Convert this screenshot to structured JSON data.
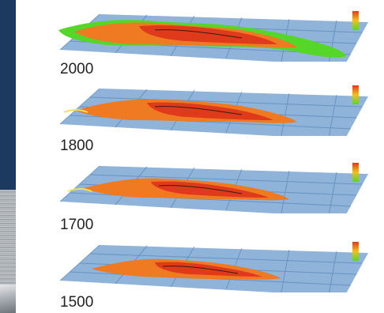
{
  "panels": [
    {
      "year": "2000"
    },
    {
      "year": "1800"
    },
    {
      "year": "1700"
    },
    {
      "year": "1500"
    }
  ],
  "colors": {
    "grid_plane": "#8fb3d9",
    "grid_line": "#5a86b8",
    "city_red": "#e03a1c",
    "city_orange": "#f07a22",
    "city_green": "#57d62a",
    "left_strip": "#1c3a60"
  }
}
